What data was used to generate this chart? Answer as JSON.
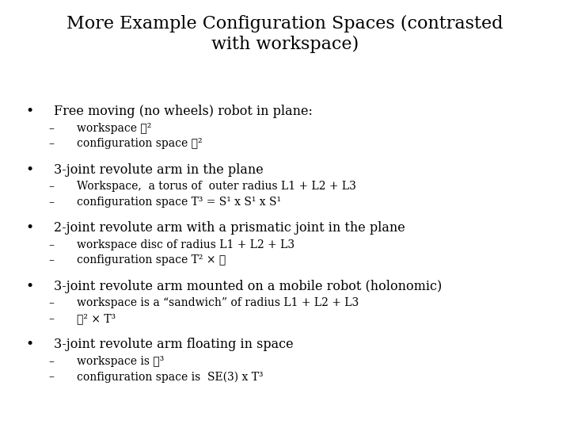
{
  "title_line1": "More Example Configuration Spaces (contrasted",
  "title_line2": "with workspace)",
  "background_color": "#ffffff",
  "text_color": "#000000",
  "title_fontsize": 16,
  "body_fontsize": 11.5,
  "sub_fontsize": 10,
  "font_family": "DejaVu Serif",
  "bullets": [
    {
      "main": "Free moving (no wheels) robot in plane:",
      "subs": [
        "workspace ℜ²",
        "configuration space ℜ²"
      ]
    },
    {
      "main": "3-joint revolute arm in the plane",
      "subs": [
        "Workspace,  a torus of  outer radius L1 + L2 + L3",
        "configuration space T³ = S¹ x S¹ x S¹"
      ]
    },
    {
      "main": "2-joint revolute arm with a prismatic joint in the plane",
      "subs": [
        "workspace disc of radius L1 + L2 + L3",
        "configuration space T² × ℜ"
      ]
    },
    {
      "main": "3-joint revolute arm mounted on a mobile robot (holonomic)",
      "subs": [
        "workspace is a “sandwich” of radius L1 + L2 + L3",
        "ℜ² × T³"
      ]
    },
    {
      "main": "3-joint revolute arm floating in space",
      "subs": [
        "workspace is ℜ³",
        "configuration space is  SE(3) x T³"
      ]
    }
  ]
}
